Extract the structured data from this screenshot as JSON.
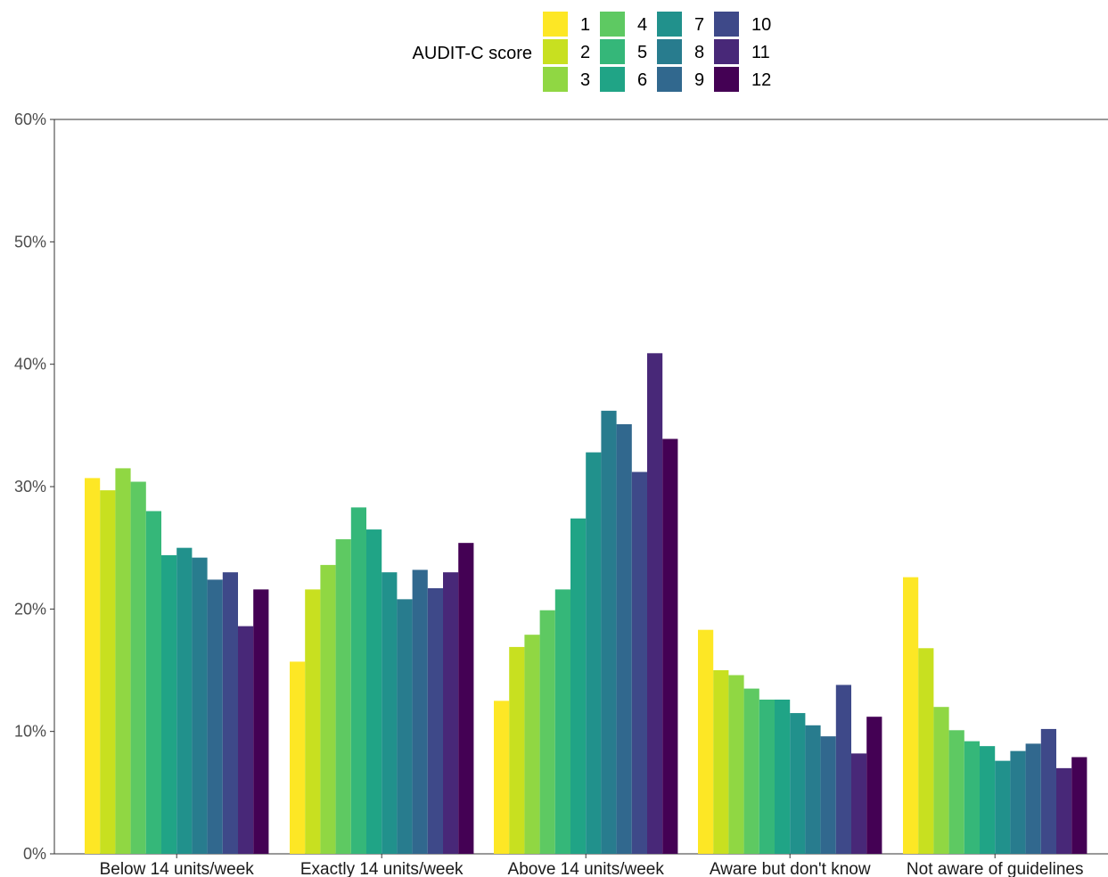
{
  "chart_data": {
    "type": "bar",
    "title": "",
    "xlabel": "",
    "ylabel": "",
    "ylim": [
      0,
      60
    ],
    "y_ticks": [
      "0%",
      "10%",
      "20%",
      "30%",
      "40%",
      "50%",
      "60%"
    ],
    "y_tick_values": [
      0,
      10,
      20,
      30,
      40,
      50,
      60
    ],
    "grid": false,
    "legend": {
      "title": "AUDIT-C score",
      "placement": "top",
      "columns": 4
    },
    "categories": [
      "Below 14 units/week",
      "Exactly 14 units/week",
      "Above 14 units/week",
      "Aware but don't know",
      "Not aware of guidelines"
    ],
    "series": [
      {
        "name": "1",
        "color": "#fde725",
        "values": [
          30.7,
          15.7,
          12.5,
          18.3,
          22.6
        ]
      },
      {
        "name": "2",
        "color": "#c8e020",
        "values": [
          29.7,
          21.6,
          16.9,
          15.0,
          16.8
        ]
      },
      {
        "name": "3",
        "color": "#90d743",
        "values": [
          31.5,
          23.6,
          17.9,
          14.6,
          12.0
        ]
      },
      {
        "name": "4",
        "color": "#5ec962",
        "values": [
          30.4,
          25.7,
          19.9,
          13.5,
          10.1
        ]
      },
      {
        "name": "5",
        "color": "#35b779",
        "values": [
          28.0,
          28.3,
          21.6,
          12.6,
          9.2
        ]
      },
      {
        "name": "6",
        "color": "#20a486",
        "values": [
          24.4,
          26.5,
          27.4,
          12.6,
          8.8
        ]
      },
      {
        "name": "7",
        "color": "#21918c",
        "values": [
          25.0,
          23.0,
          32.8,
          11.5,
          7.6
        ]
      },
      {
        "name": "8",
        "color": "#287c8e",
        "values": [
          24.2,
          20.8,
          36.2,
          10.5,
          8.4
        ]
      },
      {
        "name": "9",
        "color": "#31688e",
        "values": [
          22.4,
          23.2,
          35.1,
          9.6,
          9.0
        ]
      },
      {
        "name": "10",
        "color": "#3e4989",
        "values": [
          23.0,
          21.7,
          31.2,
          13.8,
          10.2
        ]
      },
      {
        "name": "11",
        "color": "#482878",
        "values": [
          18.6,
          23.0,
          40.9,
          8.2,
          7.0
        ]
      },
      {
        "name": "12",
        "color": "#440154",
        "values": [
          21.6,
          25.4,
          33.9,
          11.2,
          7.9
        ]
      }
    ]
  }
}
